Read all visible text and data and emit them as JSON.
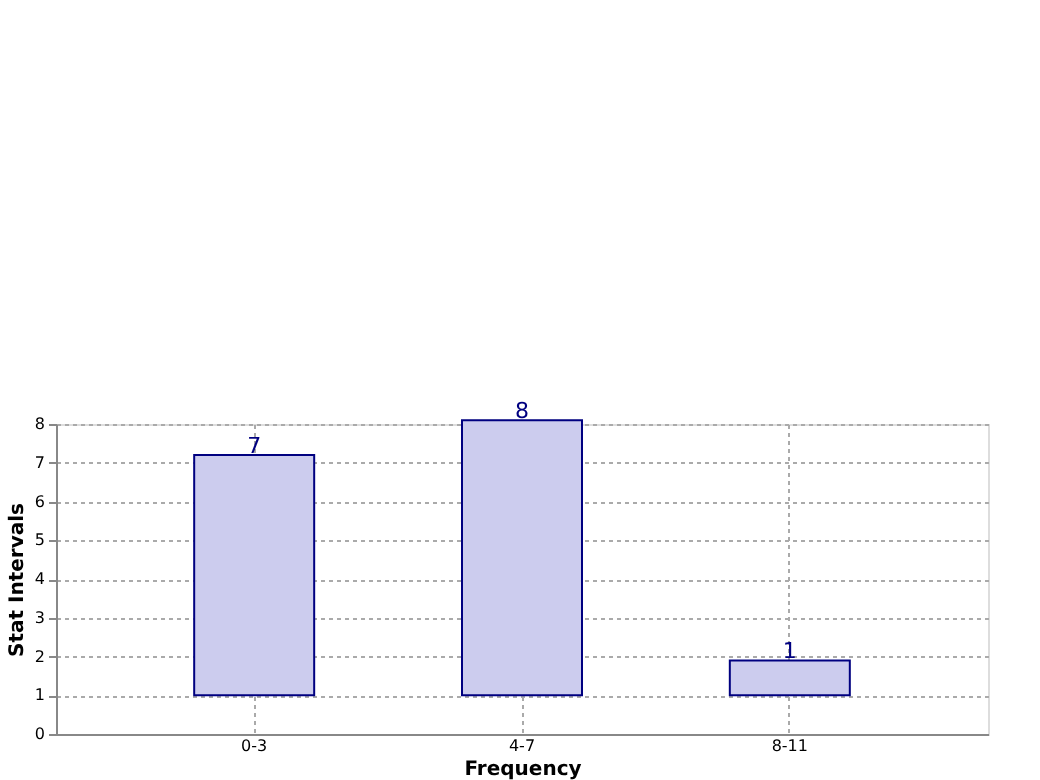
{
  "chart_data": {
    "type": "bar",
    "xlabel": "Frequency",
    "ylabel": "Stat Intervals",
    "categories": [
      "0-3",
      "4-7",
      "8-11"
    ],
    "base": [
      1,
      1,
      1
    ],
    "values": [
      6.2,
      7.1,
      0.9
    ],
    "value_labels": [
      "7",
      "8",
      "1"
    ],
    "color": "#ccccee",
    "ylim": [
      0,
      8
    ],
    "yticks": [
      0,
      1,
      2,
      3,
      4,
      5,
      6,
      7,
      8
    ],
    "grid": true
  }
}
